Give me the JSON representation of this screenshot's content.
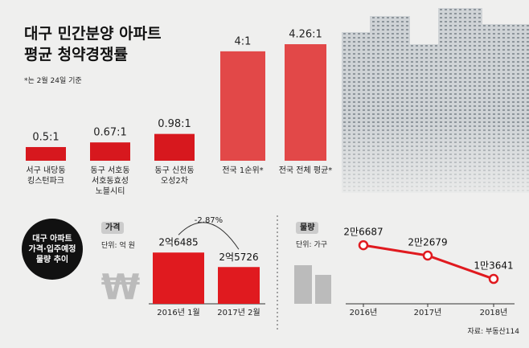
{
  "section_label": "대구 아파트\n가격·입주예정\n물량 추이",
  "source": "자료: 부동산114",
  "chart_data": [
    {
      "type": "bar",
      "title": "대구 민간분양 아파트\n평균 청약경쟁률",
      "note": "*는 2월 24일 기준",
      "categories": [
        "서구 내당동\n킹스턴파크",
        "동구 서호동\n서호동효성\n노블시티",
        "동구 신천동\n오성2차",
        "전국 1순위*",
        "전국 전체 평균*"
      ],
      "values": [
        0.5,
        0.67,
        0.98,
        4,
        4.26
      ],
      "value_labels": [
        "0.5:1",
        "0.67:1",
        "0.98:1",
        "4:1",
        "4.26:1"
      ],
      "colors": [
        "#d7181e",
        "#d7181e",
        "#d7181e",
        "#e24848",
        "#e24848"
      ]
    },
    {
      "type": "bar",
      "title": "가격",
      "unit": "단위: 억 원",
      "categories": [
        "2016년 1월",
        "2017년 2월"
      ],
      "values": [
        2.6485,
        2.5726
      ],
      "value_labels": [
        "2억6485",
        "2억5726"
      ],
      "change_label": "-2.87%",
      "color": "#e01a1f",
      "ylim": [
        2.38,
        2.7
      ]
    },
    {
      "type": "line",
      "title": "물량",
      "unit": "단위: 가구",
      "categories": [
        "2016년",
        "2017년",
        "2018년"
      ],
      "values": [
        26687,
        22679,
        13641
      ],
      "value_labels": [
        "2만6687",
        "2만2679",
        "1만3641"
      ],
      "color": "#e01a1f",
      "ylim": [
        4000,
        37000
      ]
    }
  ]
}
